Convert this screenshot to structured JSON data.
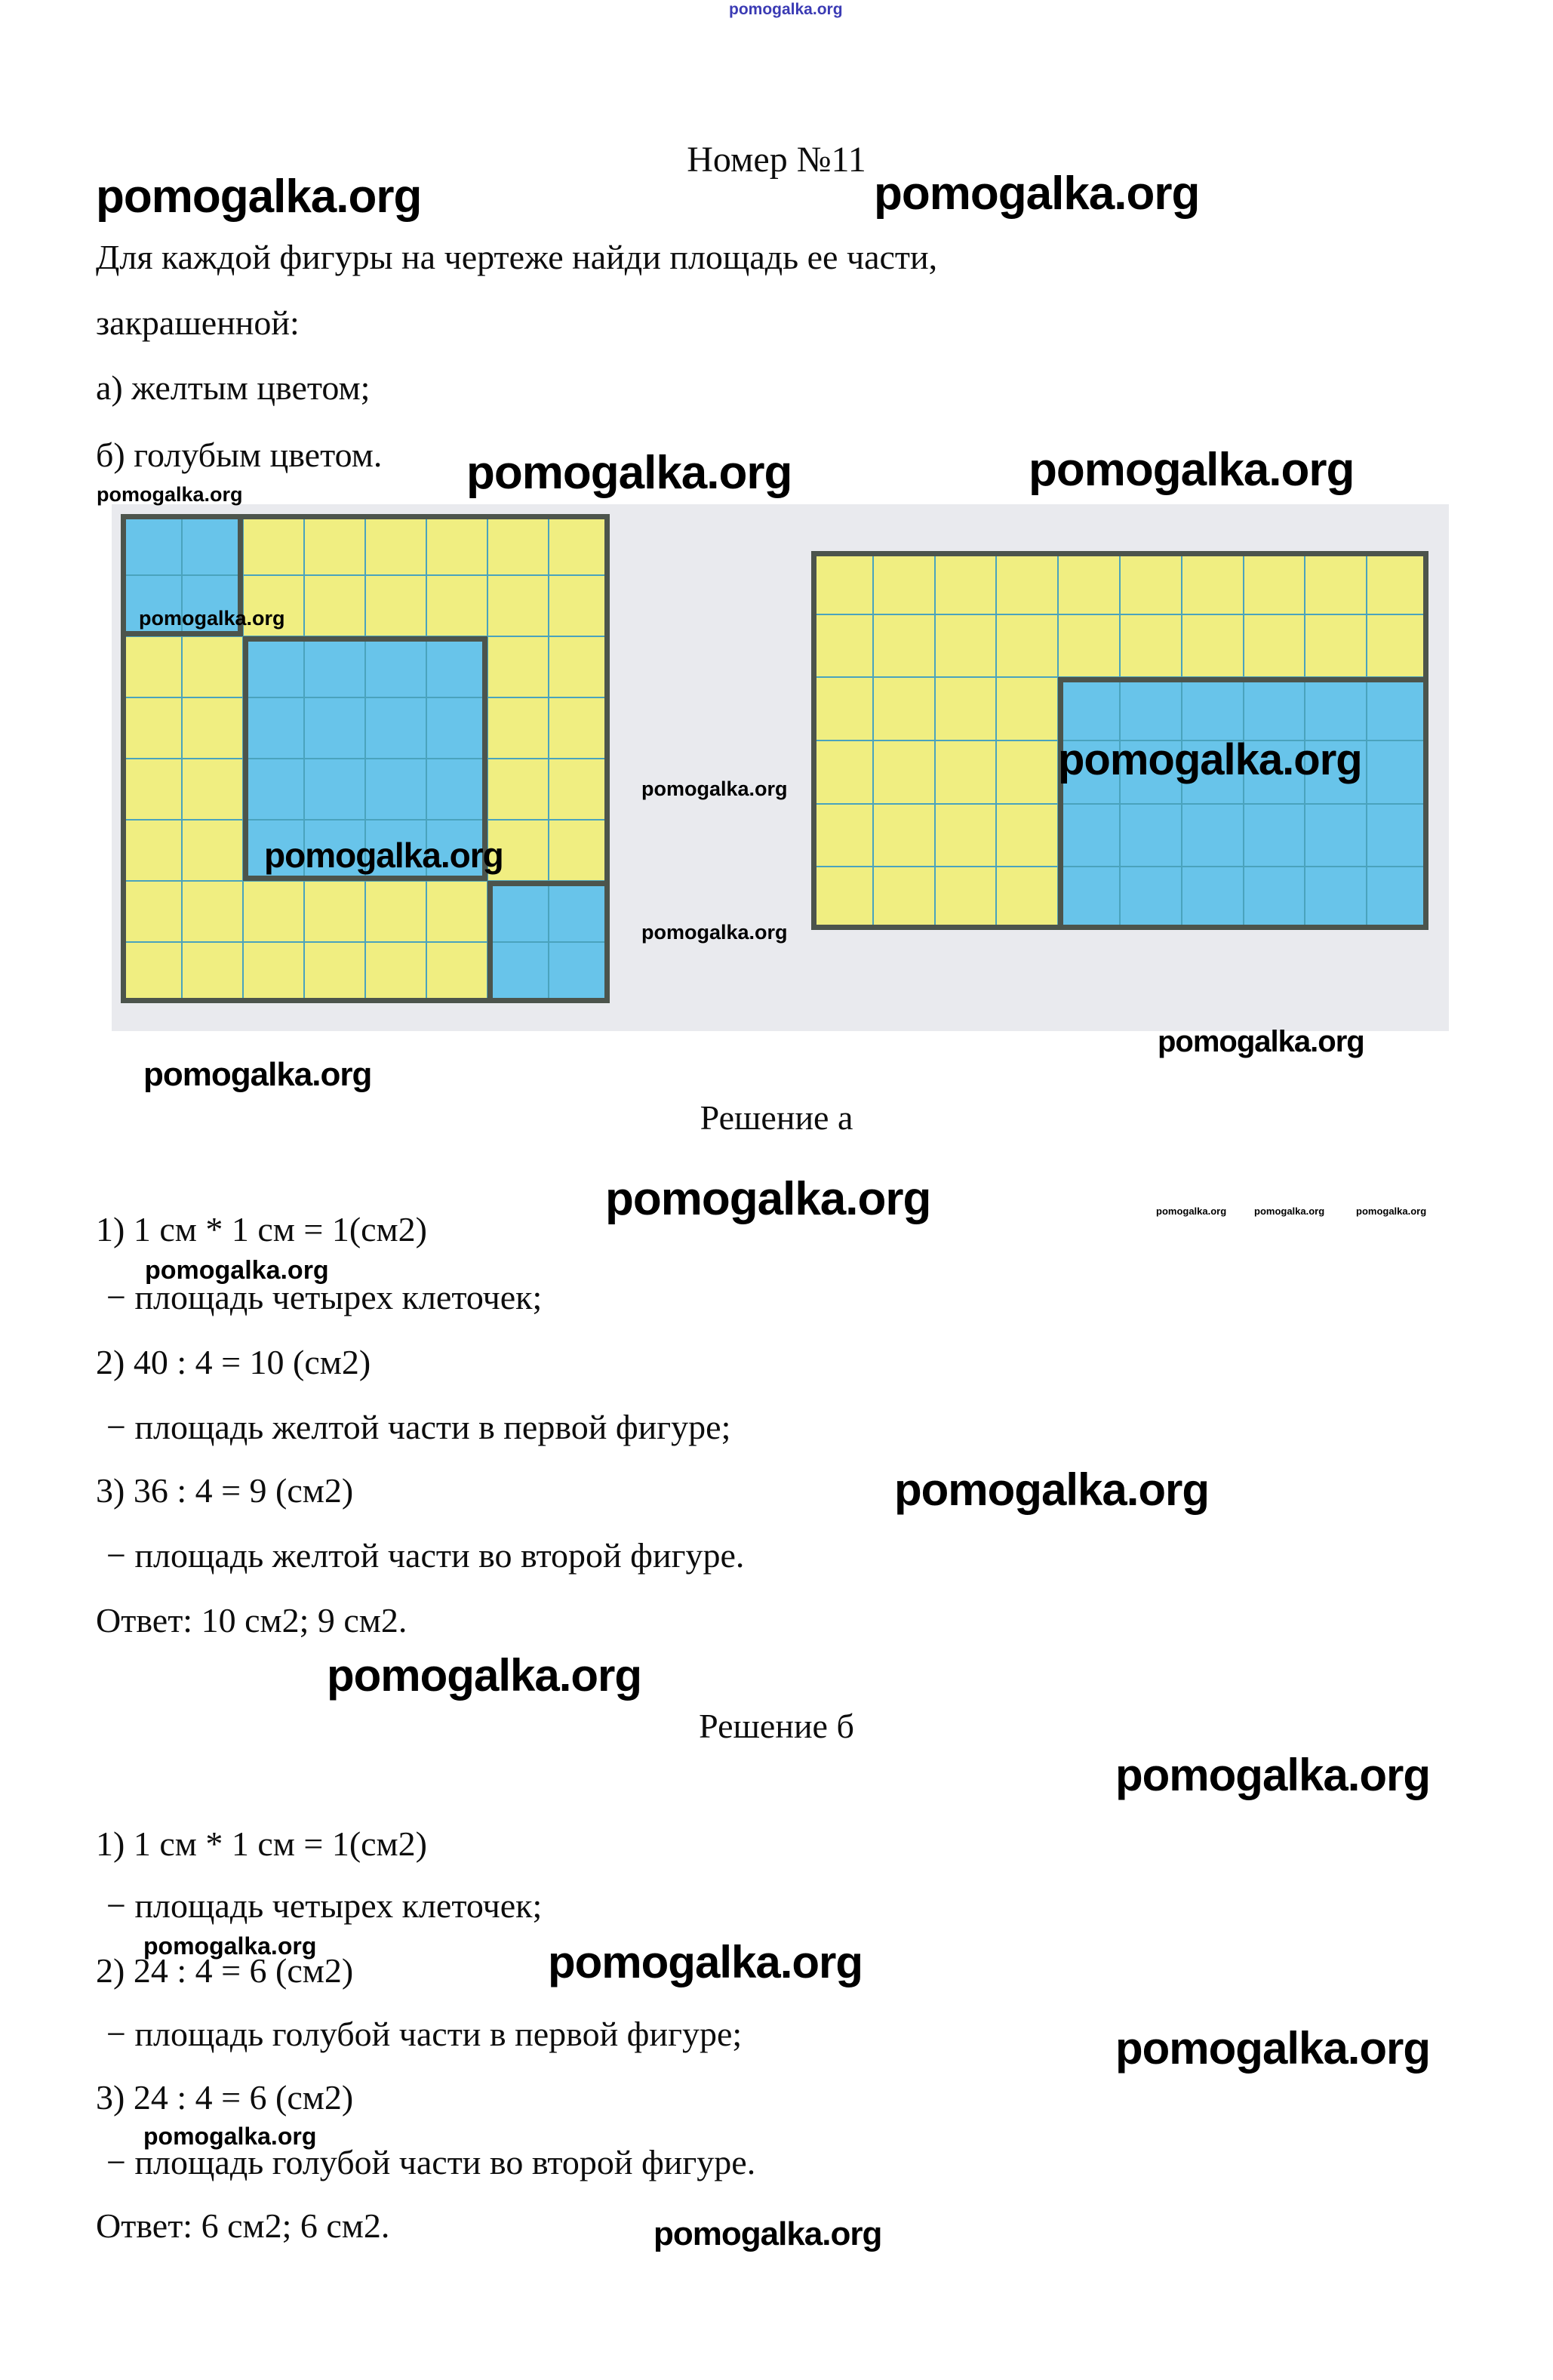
{
  "brand": "pomogalka.org",
  "page": {
    "title": "Номер №11",
    "problem": {
      "line1": "Для каждой фигуры на чертеже найди площадь ее части,",
      "line2": "закрашенной:",
      "item_a": "а) желтым цветом;",
      "item_b": "б) голубым цветом."
    },
    "solution_a": {
      "heading": "Решение а",
      "step1": "1) 1 см * 1 см = 1(см2)",
      "note1": "− площадь четырех клеточек;",
      "step2": "2) 40 : 4 = 10 (см2)",
      "note2": "− площадь желтой части в первой фигуре;",
      "step3": "3) 36 : 4 = 9 (см2)",
      "note3": "− площадь желтой части во второй фигуре.",
      "answer": "Ответ: 10 см2; 9 см2."
    },
    "solution_b": {
      "heading": "Решение б",
      "step1": "1) 1 см * 1 см = 1(см2)",
      "note1": "− площадь четырех клеточек;",
      "step2": "2) 24 : 4 = 6 (см2)",
      "note2": "− площадь голубой части в первой фигуре;",
      "step3": "3) 24 : 4 = 6 (см2)",
      "note3": "− площадь голубой части во второй фигуре.",
      "answer": "Ответ: 6 см2; 6 см2."
    }
  },
  "figures": {
    "first": {
      "cols": 8,
      "rows": 8,
      "yellow_cells": 40,
      "blue_cells": 24,
      "blue_regions": [
        {
          "col": 1,
          "row": 1,
          "w": 2,
          "h": 2
        },
        {
          "col": 3,
          "row": 3,
          "w": 4,
          "h": 4
        },
        {
          "col": 7,
          "row": 7,
          "w": 2,
          "h": 2
        }
      ]
    },
    "second": {
      "cols": 10,
      "rows": 6,
      "yellow_cells": 36,
      "blue_cells": 24,
      "blue_regions": [
        {
          "col": 5,
          "row": 3,
          "w": 6,
          "h": 4
        }
      ]
    }
  },
  "colors": {
    "cell_yellow": "#f0ee81",
    "cell_blue": "#68c4ea",
    "grid_line": "#4aa3bd",
    "region_border": "#4c544c",
    "scan_background": "#e9eaee",
    "top_watermark_blue": "#3b3bb4"
  }
}
